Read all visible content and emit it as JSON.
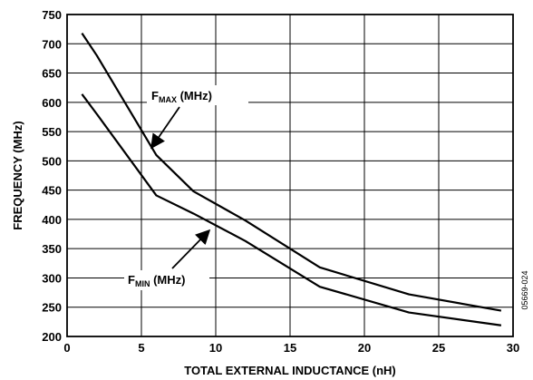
{
  "chart_data": {
    "type": "line",
    "title": "",
    "xlabel": "TOTAL EXTERNAL INDUCTANCE (nH)",
    "ylabel": "FREQUENCY (MHz)",
    "xlim": [
      0,
      30
    ],
    "ylim": [
      200,
      750
    ],
    "xticks": [
      0,
      5,
      10,
      15,
      20,
      25,
      30
    ],
    "yticks": [
      200,
      250,
      300,
      350,
      400,
      450,
      500,
      550,
      600,
      650,
      700,
      750
    ],
    "grid": true,
    "series": [
      {
        "name": "FMAX (MHz)",
        "x": [
          1,
          2,
          6,
          8.5,
          12,
          17,
          23,
          29.2
        ],
        "y": [
          718,
          680,
          510,
          448,
          398,
          318,
          272,
          244
        ]
      },
      {
        "name": "FMIN (MHz)",
        "x": [
          1,
          2,
          6,
          8.5,
          12,
          17,
          23,
          29.2
        ],
        "y": [
          614,
          580,
          441,
          410,
          363,
          285,
          241,
          219
        ]
      }
    ],
    "annotations": [
      {
        "main": "F",
        "sub": "MAX",
        "suffix": " (MHz)",
        "series": "FMAX (MHz)"
      },
      {
        "main": "F",
        "sub": "MIN",
        "suffix": " (MHz)",
        "series": "FMIN (MHz)"
      }
    ],
    "figure_id": "05669-024"
  }
}
